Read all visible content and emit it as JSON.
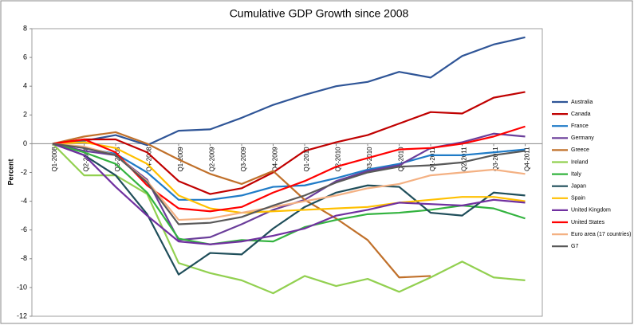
{
  "chart_data": {
    "type": "line",
    "title": "Cumulative GDP Growth since 2008",
    "y_label": "Percent",
    "categories": [
      "Q1-2008",
      "Q2-2008",
      "Q3-2008",
      "Q4-2008",
      "Q1-2009",
      "Q2-2009",
      "Q3-2009",
      "Q4-2009",
      "Q1-2010",
      "Q2-2010",
      "Q3-2010",
      "Q4-2010",
      "Q1-2011",
      "Q2-2011",
      "Q3-2011",
      "Q4-2011"
    ],
    "ylim": [
      -12,
      8
    ],
    "yticks": [
      -12,
      -10,
      -8,
      -6,
      -4,
      -2,
      0,
      2,
      4,
      6,
      8
    ],
    "grid": false,
    "legend": "right",
    "series": [
      {
        "name": "Australia",
        "color": "#2f5597",
        "values": [
          0,
          0.2,
          0.6,
          -0.1,
          0.9,
          1.0,
          1.8,
          2.7,
          3.4,
          4.0,
          4.3,
          5.0,
          4.6,
          6.1,
          6.9,
          7.4
        ]
      },
      {
        "name": "Canada",
        "color": "#c00000",
        "values": [
          0,
          0.3,
          0.3,
          -0.6,
          -2.6,
          -3.5,
          -3.1,
          -2.0,
          -0.5,
          0.1,
          0.6,
          1.4,
          2.2,
          2.1,
          3.2,
          3.6
        ]
      },
      {
        "name": "France",
        "color": "#1f7bc7",
        "values": [
          0,
          -0.3,
          -0.7,
          -2.0,
          -3.9,
          -3.9,
          -3.6,
          -3.0,
          -2.9,
          -2.4,
          -1.8,
          -1.4,
          -0.8,
          -0.8,
          -0.6,
          -0.4
        ]
      },
      {
        "name": "Germany",
        "color": "#6a3d9a",
        "values": [
          0,
          -0.5,
          -0.8,
          -2.5,
          -6.7,
          -6.5,
          -5.6,
          -4.6,
          -3.9,
          -2.6,
          -1.9,
          -1.5,
          -0.3,
          0.1,
          0.7,
          0.5
        ]
      },
      {
        "name": "Greece",
        "color": "#c0702a",
        "values": [
          0,
          0.5,
          0.8,
          0,
          -1.1,
          -2.1,
          -2.8,
          -1.9,
          -3.9,
          -5.2,
          -6.7,
          -9.3,
          -9.2,
          null,
          null,
          null
        ]
      },
      {
        "name": "Ireland",
        "color": "#92d050",
        "values": [
          0,
          -2.2,
          -2.2,
          -3.5,
          -8.3,
          -9.0,
          -9.5,
          -10.4,
          -9.2,
          -9.9,
          -9.4,
          -10.3,
          -9.3,
          -8.2,
          -9.3,
          -9.5
        ]
      },
      {
        "name": "Italy",
        "color": "#33b33f",
        "values": [
          0,
          -0.6,
          -1.4,
          -3.4,
          -6.6,
          -7.0,
          -6.7,
          -6.8,
          -5.8,
          -5.3,
          -4.9,
          -4.8,
          -4.6,
          -4.3,
          -4.5,
          -5.2
        ]
      },
      {
        "name": "Japan",
        "color": "#1f4e5a",
        "values": [
          0,
          -0.8,
          -2.2,
          -4.9,
          -9.1,
          -7.6,
          -7.7,
          -5.9,
          -4.4,
          -3.4,
          -2.9,
          -3.0,
          -4.8,
          -5.0,
          -3.4,
          -3.6
        ]
      },
      {
        "name": "Spain",
        "color": "#ffc000",
        "values": [
          0,
          0.1,
          -0.3,
          -1.4,
          -3.6,
          -4.5,
          -4.8,
          -4.7,
          -4.6,
          -4.5,
          -4.4,
          -4.1,
          -3.9,
          -3.7,
          -3.7,
          -4.0
        ]
      },
      {
        "name": "United Kingdom",
        "color": "#7030a0",
        "values": [
          0,
          -0.8,
          -3.0,
          -5.0,
          -6.8,
          -7.0,
          -6.8,
          -6.4,
          -5.9,
          -5.0,
          -4.6,
          -4.1,
          -4.2,
          -4.3,
          -3.9,
          -4.1
        ]
      },
      {
        "name": "United States",
        "color": "#ff0000",
        "values": [
          0,
          0.3,
          -0.6,
          -2.9,
          -4.5,
          -4.7,
          -4.4,
          -3.4,
          -2.6,
          -1.6,
          -1.0,
          -0.4,
          -0.3,
          0.0,
          0.5,
          1.2
        ]
      },
      {
        "name": "Euro area (17 countries)",
        "color": "#f4b183",
        "values": [
          0,
          -0.2,
          -0.8,
          -2.6,
          -5.3,
          -5.2,
          -4.8,
          -4.4,
          -4.0,
          -3.6,
          -3.1,
          -2.8,
          -2.2,
          -2.0,
          -1.8,
          -2.1
        ]
      },
      {
        "name": "G7",
        "color": "#595959",
        "values": [
          0,
          -0.3,
          -0.8,
          -2.7,
          -5.6,
          -5.5,
          -5.1,
          -4.3,
          -3.6,
          -2.7,
          -2.0,
          -1.6,
          -1.5,
          -1.3,
          -0.8,
          -0.5
        ]
      }
    ]
  }
}
